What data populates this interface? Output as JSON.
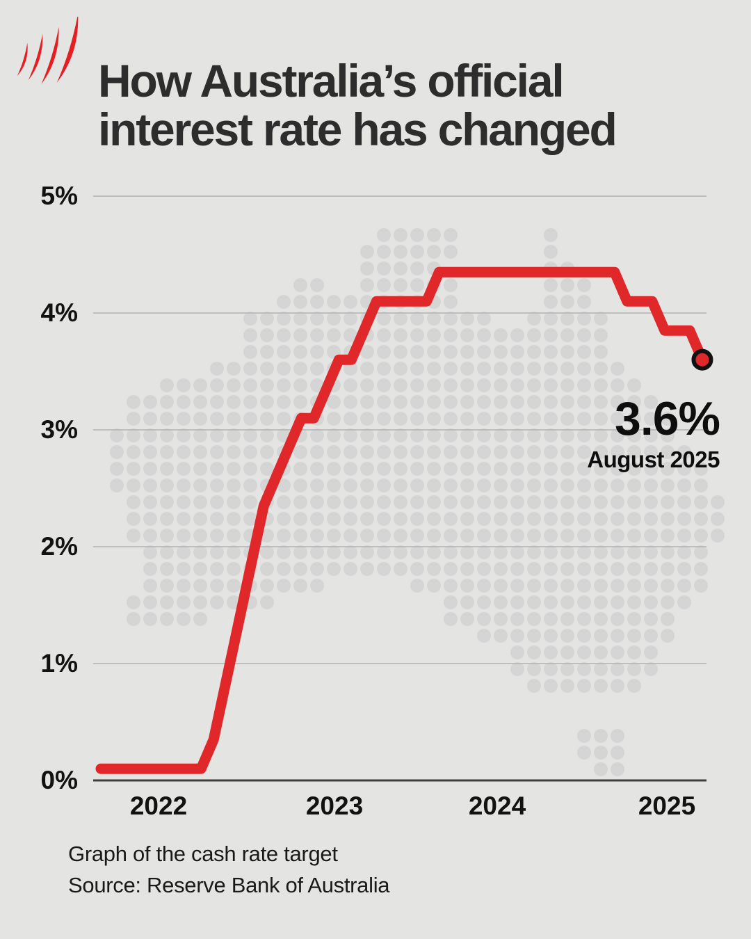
{
  "header": {
    "title": "How Australia’s official\ninterest rate has changed",
    "logo": "sbs-flame-logo"
  },
  "chart_data": {
    "type": "line",
    "title": "How Australia's official interest rate has changed",
    "xlabel": "",
    "ylabel": "",
    "unit": "%",
    "ylim": [
      0,
      5
    ],
    "grid": true,
    "legend": "none",
    "y_ticks": [
      "0%",
      "1%",
      "2%",
      "3%",
      "4%",
      "5%"
    ],
    "x_ticks": [
      "2022",
      "2023",
      "2024",
      "2025"
    ],
    "series": [
      {
        "name": "Cash rate target",
        "points": [
          [
            "2021-08",
            0.1
          ],
          [
            "2022-04",
            0.1
          ],
          [
            "2022-05",
            0.35
          ],
          [
            "2022-06",
            0.85
          ],
          [
            "2022-07",
            1.35
          ],
          [
            "2022-08",
            1.85
          ],
          [
            "2022-09",
            2.35
          ],
          [
            "2022-10",
            2.6
          ],
          [
            "2022-11",
            2.85
          ],
          [
            "2022-12",
            3.1
          ],
          [
            "2023-01",
            3.1
          ],
          [
            "2023-02",
            3.35
          ],
          [
            "2023-03",
            3.6
          ],
          [
            "2023-04",
            3.6
          ],
          [
            "2023-05",
            3.85
          ],
          [
            "2023-06",
            4.1
          ],
          [
            "2023-10",
            4.1
          ],
          [
            "2023-11",
            4.35
          ],
          [
            "2025-01",
            4.35
          ],
          [
            "2025-02",
            4.1
          ],
          [
            "2025-04",
            4.1
          ],
          [
            "2025-05",
            3.85
          ],
          [
            "2025-07",
            3.85
          ],
          [
            "2025-08",
            3.6
          ]
        ]
      }
    ],
    "end_annotation": {
      "value_label": "3.6%",
      "date_label": "August 2025",
      "value": 3.6
    }
  },
  "annotation": {
    "value": "3.6%",
    "date": "August 2025"
  },
  "footer": {
    "line1": "Graph of the cash rate target",
    "line2": "Source: Reserve Bank of Australia"
  },
  "background_map": {
    "name": "australia-dot-map",
    "dot_color": "#d5d5d5"
  },
  "colors": {
    "background": "#e4e4e2",
    "line_red": "#e02729",
    "logo_red": "#e61e22",
    "gridline": "#b3b2b1",
    "axis": "#3f3f3f",
    "title_text": "#2d2d2d",
    "marker_ring": "#111111"
  }
}
